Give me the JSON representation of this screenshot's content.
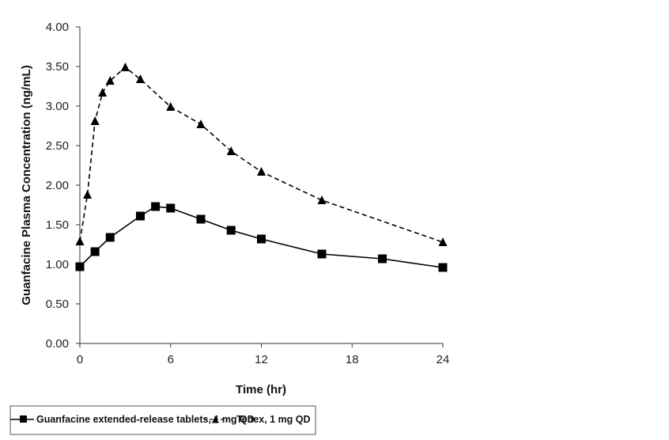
{
  "chart_data": {
    "type": "line",
    "title": "",
    "xlabel": "Time (hr)",
    "ylabel": "Guanfacine Plasma Concentration (ng/mL)",
    "xlim": [
      0,
      24
    ],
    "ylim": [
      0,
      4
    ],
    "xticks": [
      "0",
      "6",
      "12",
      "18",
      "24"
    ],
    "xtick_values": [
      0,
      6,
      12,
      18,
      24
    ],
    "yticks": [
      "0.00",
      "0.50",
      "1.00",
      "1.50",
      "2.00",
      "2.50",
      "3.00",
      "3.50",
      "4.00"
    ],
    "ytick_values": [
      0,
      0.5,
      1.0,
      1.5,
      2.0,
      2.5,
      3.0,
      3.5,
      4.0
    ],
    "grid": false,
    "legend_position": "bottom",
    "series": [
      {
        "name": "Guanfacine extended-release tablets, 1 mg QD",
        "marker": "square",
        "line": "solid",
        "color": "#000000",
        "x": [
          0,
          1,
          2,
          4,
          5,
          6,
          8,
          10,
          12,
          16,
          20,
          24
        ],
        "y": [
          0.97,
          1.16,
          1.34,
          1.61,
          1.73,
          1.71,
          1.57,
          1.43,
          1.32,
          1.13,
          1.07,
          0.96
        ]
      },
      {
        "name": "Tenex, 1 mg QD",
        "marker": "triangle",
        "line": "dashed",
        "color": "#000000",
        "x": [
          0,
          0.5,
          1,
          1.5,
          2,
          3,
          4,
          6,
          8,
          10,
          12,
          16,
          24
        ],
        "y": [
          1.29,
          1.88,
          2.81,
          3.17,
          3.32,
          3.49,
          3.34,
          2.99,
          2.77,
          2.43,
          2.17,
          1.81,
          1.28
        ]
      }
    ]
  }
}
